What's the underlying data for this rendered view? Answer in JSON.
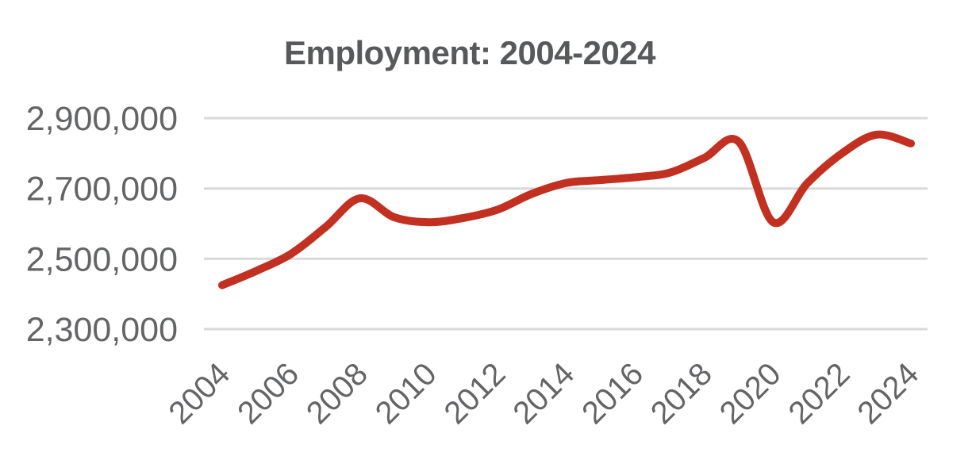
{
  "chart_data": {
    "type": "line",
    "title": "Employment: 2004-2024",
    "x": [
      2004,
      2005,
      2006,
      2007,
      2008,
      2009,
      2010,
      2011,
      2012,
      2013,
      2014,
      2015,
      2016,
      2017,
      2018,
      2019,
      2020,
      2021,
      2022,
      2023,
      2024
    ],
    "series": [
      {
        "name": "Employment",
        "values": [
          2425000,
          2466000,
          2514000,
          2590000,
          2672000,
          2618000,
          2604000,
          2616000,
          2640000,
          2685000,
          2716000,
          2724000,
          2732000,
          2745000,
          2787000,
          2833000,
          2604000,
          2716000,
          2800000,
          2853000,
          2828000
        ]
      }
    ],
    "xlabel": "",
    "ylabel": "",
    "x_tick_labels": [
      "2004",
      "2006",
      "2008",
      "2010",
      "2012",
      "2014",
      "2016",
      "2018",
      "2020",
      "2022",
      "2024"
    ],
    "y_ticks": [
      {
        "label": "2,900,000",
        "value": 2900000
      },
      {
        "label": "2,700,000",
        "value": 2700000
      },
      {
        "label": "2,500,000",
        "value": 2500000
      },
      {
        "label": "2,300,000",
        "value": 2300000
      }
    ],
    "ylim": [
      2300000,
      2900000
    ],
    "grid": "horizontal",
    "legend": "none",
    "line_color": "#c13020",
    "title_color": "#58595b",
    "label_color": "#636466",
    "gridline_color": "#d8d9da",
    "background": "#ffffff"
  }
}
